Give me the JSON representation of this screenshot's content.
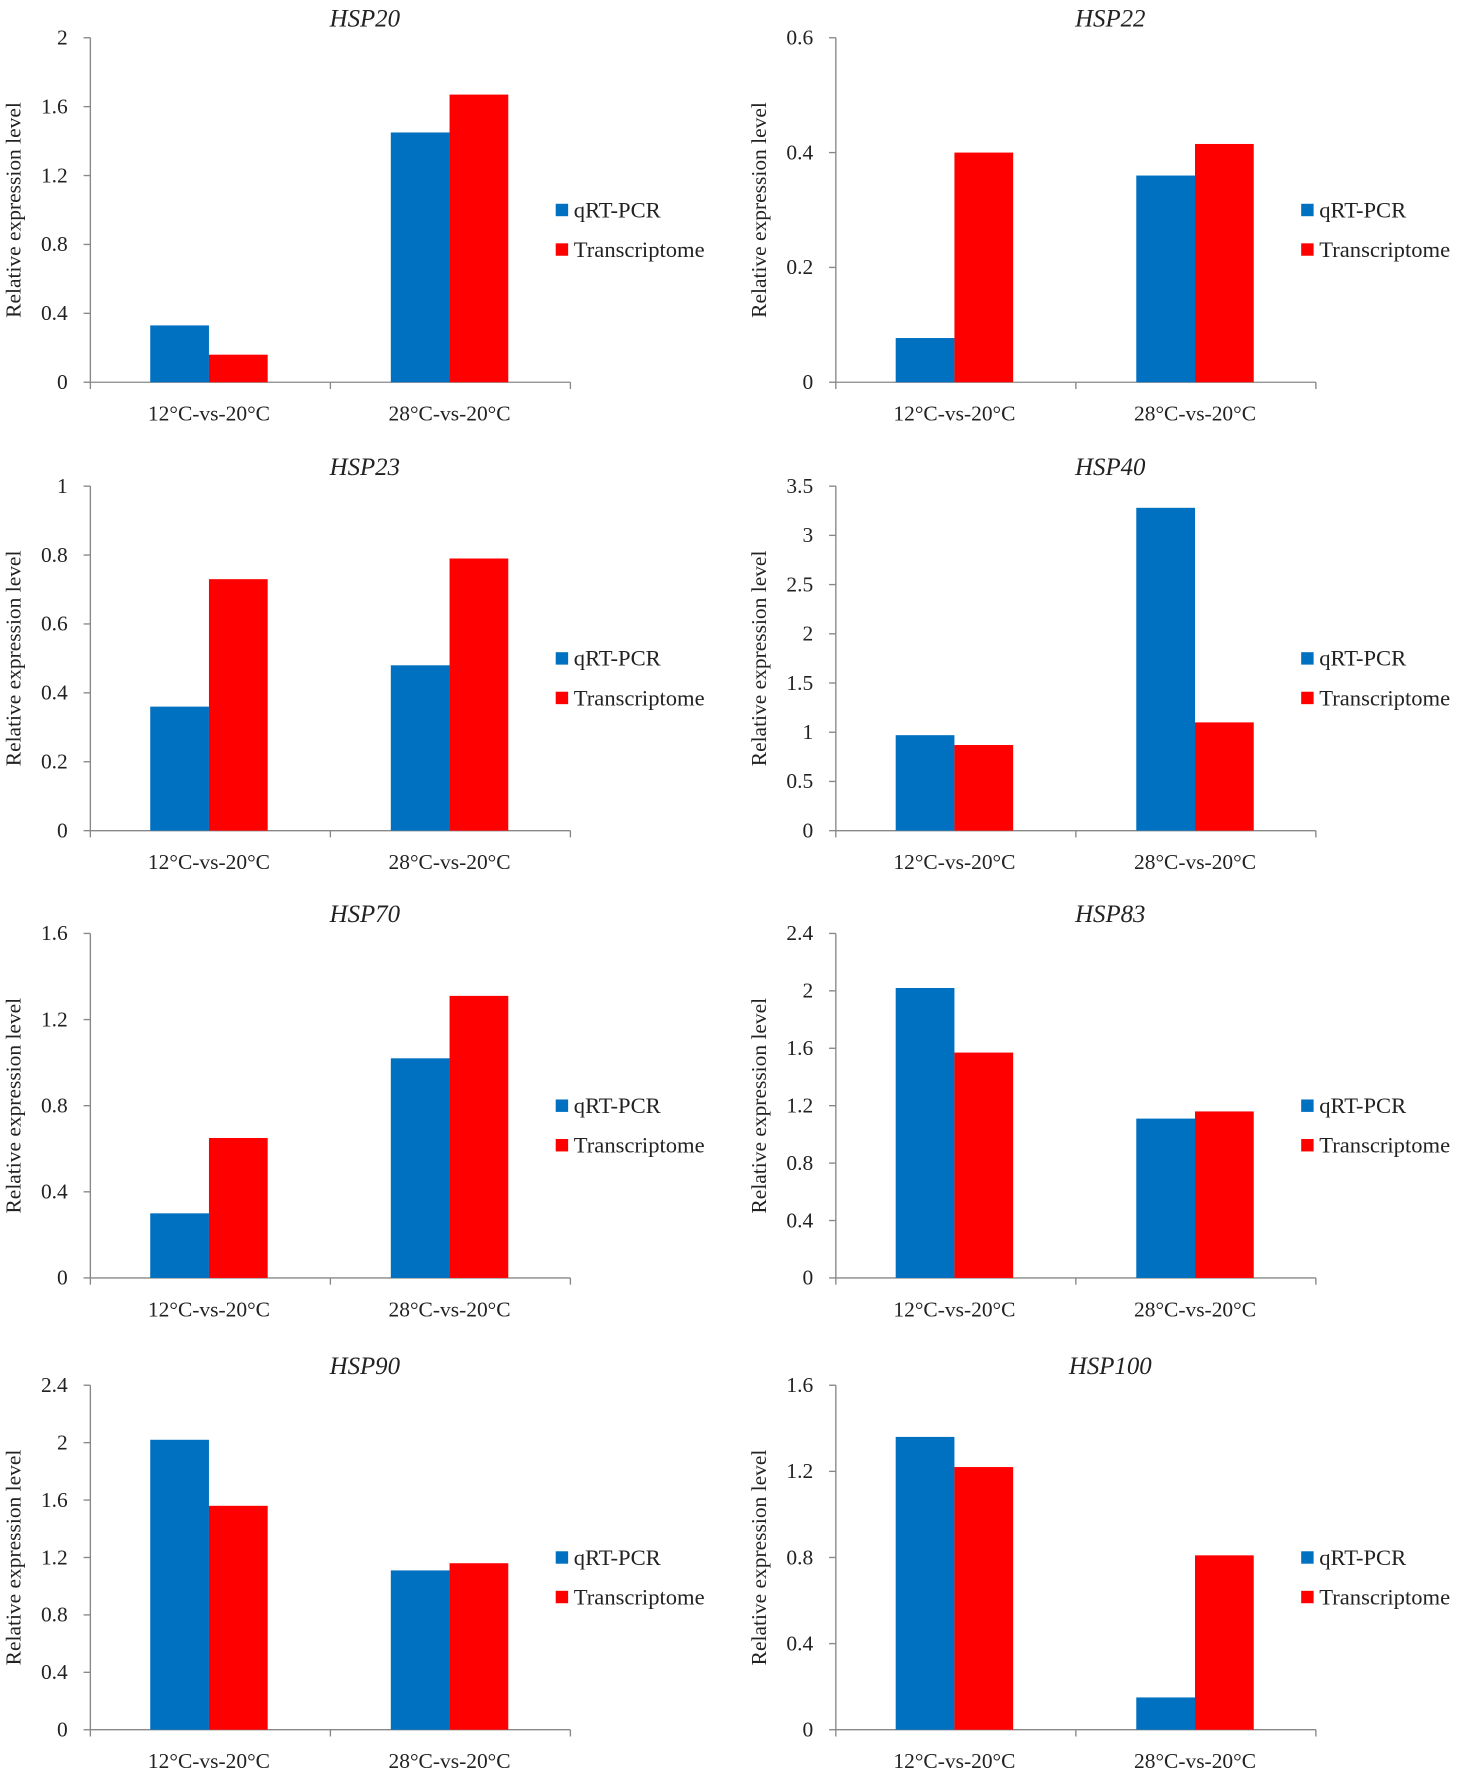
{
  "chart_data": [
    {
      "type": "bar",
      "title": "HSP20",
      "ylabel": "Relative expression level",
      "ylim": [
        0,
        2
      ],
      "yticks": [
        "0",
        "0.4",
        "0.8",
        "1.2",
        "1.6",
        "2"
      ],
      "categories": [
        "12°C-vs-20°C",
        "28°C-vs-20°C"
      ],
      "series": [
        {
          "name": "qRT-PCR",
          "values": [
            0.33,
            1.45
          ]
        },
        {
          "name": "Transcriptome",
          "values": [
            0.16,
            1.67
          ]
        }
      ]
    },
    {
      "type": "bar",
      "title": "HSP22",
      "ylabel": "Relative expression level",
      "ylim": [
        0,
        0.6
      ],
      "yticks": [
        "0",
        "0.2",
        "0.4",
        "0.6"
      ],
      "categories": [
        "12°C-vs-20°C",
        "28°C-vs-20°C"
      ],
      "series": [
        {
          "name": "qRT-PCR",
          "values": [
            0.077,
            0.36
          ]
        },
        {
          "name": "Transcriptome",
          "values": [
            0.4,
            0.415
          ]
        }
      ]
    },
    {
      "type": "bar",
      "title": "HSP23",
      "ylabel": "Relative expression level",
      "ylim": [
        0,
        1
      ],
      "yticks": [
        "0",
        "0.2",
        "0.4",
        "0.6",
        "0.8",
        "1"
      ],
      "categories": [
        "12°C-vs-20°C",
        "28°C-vs-20°C"
      ],
      "series": [
        {
          "name": "qRT-PCR",
          "values": [
            0.36,
            0.48
          ]
        },
        {
          "name": "Transcriptome",
          "values": [
            0.73,
            0.79
          ]
        }
      ]
    },
    {
      "type": "bar",
      "title": "HSP40",
      "ylabel": "Relative expression level",
      "ylim": [
        0,
        3.5
      ],
      "yticks": [
        "0",
        "0.5",
        "1",
        "1.5",
        "2",
        "2.5",
        "3",
        "3.5"
      ],
      "categories": [
        "12°C-vs-20°C",
        "28°C-vs-20°C"
      ],
      "series": [
        {
          "name": "qRT-PCR",
          "values": [
            0.97,
            3.28
          ]
        },
        {
          "name": "Transcriptome",
          "values": [
            0.87,
            1.1
          ]
        }
      ]
    },
    {
      "type": "bar",
      "title": "HSP70",
      "ylabel": "Relative expression level",
      "ylim": [
        0,
        1.6
      ],
      "yticks": [
        "0",
        "0.4",
        "0.8",
        "1.2",
        "1.6"
      ],
      "categories": [
        "12°C-vs-20°C",
        "28°C-vs-20°C"
      ],
      "series": [
        {
          "name": "qRT-PCR",
          "values": [
            0.3,
            1.02
          ]
        },
        {
          "name": "Transcriptome",
          "values": [
            0.65,
            1.31
          ]
        }
      ]
    },
    {
      "type": "bar",
      "title": "HSP83",
      "ylabel": "Relative expression level",
      "ylim": [
        0,
        2.4
      ],
      "yticks": [
        "0",
        "0.4",
        "0.8",
        "1.2",
        "1.6",
        "2",
        "2.4"
      ],
      "categories": [
        "12°C-vs-20°C",
        "28°C-vs-20°C"
      ],
      "series": [
        {
          "name": "qRT-PCR",
          "values": [
            2.02,
            1.11
          ]
        },
        {
          "name": "Transcriptome",
          "values": [
            1.57,
            1.16
          ]
        }
      ]
    },
    {
      "type": "bar",
      "title": "HSP90",
      "ylabel": "Relative expression level",
      "ylim": [
        0,
        2.4
      ],
      "yticks": [
        "0",
        "0.4",
        "0.8",
        "1.2",
        "1.6",
        "2",
        "2.4"
      ],
      "categories": [
        "12°C-vs-20°C",
        "28°C-vs-20°C"
      ],
      "series": [
        {
          "name": "qRT-PCR",
          "values": [
            2.02,
            1.11
          ]
        },
        {
          "name": "Transcriptome",
          "values": [
            1.56,
            1.16
          ]
        }
      ]
    },
    {
      "type": "bar",
      "title": "HSP100",
      "ylabel": "Relative expression level",
      "ylim": [
        0,
        1.6
      ],
      "yticks": [
        "0",
        "0.4",
        "0.8",
        "1.2",
        "1.6"
      ],
      "categories": [
        "12°C-vs-20°C",
        "28°C-vs-20°C"
      ],
      "series": [
        {
          "name": "qRT-PCR",
          "values": [
            1.36,
            0.15
          ]
        },
        {
          "name": "Transcriptome",
          "values": [
            1.22,
            0.81
          ]
        }
      ]
    }
  ],
  "colors": {
    "qRT-PCR": "#0070C0",
    "Transcriptome": "#FF0000",
    "axis": "#888888"
  }
}
